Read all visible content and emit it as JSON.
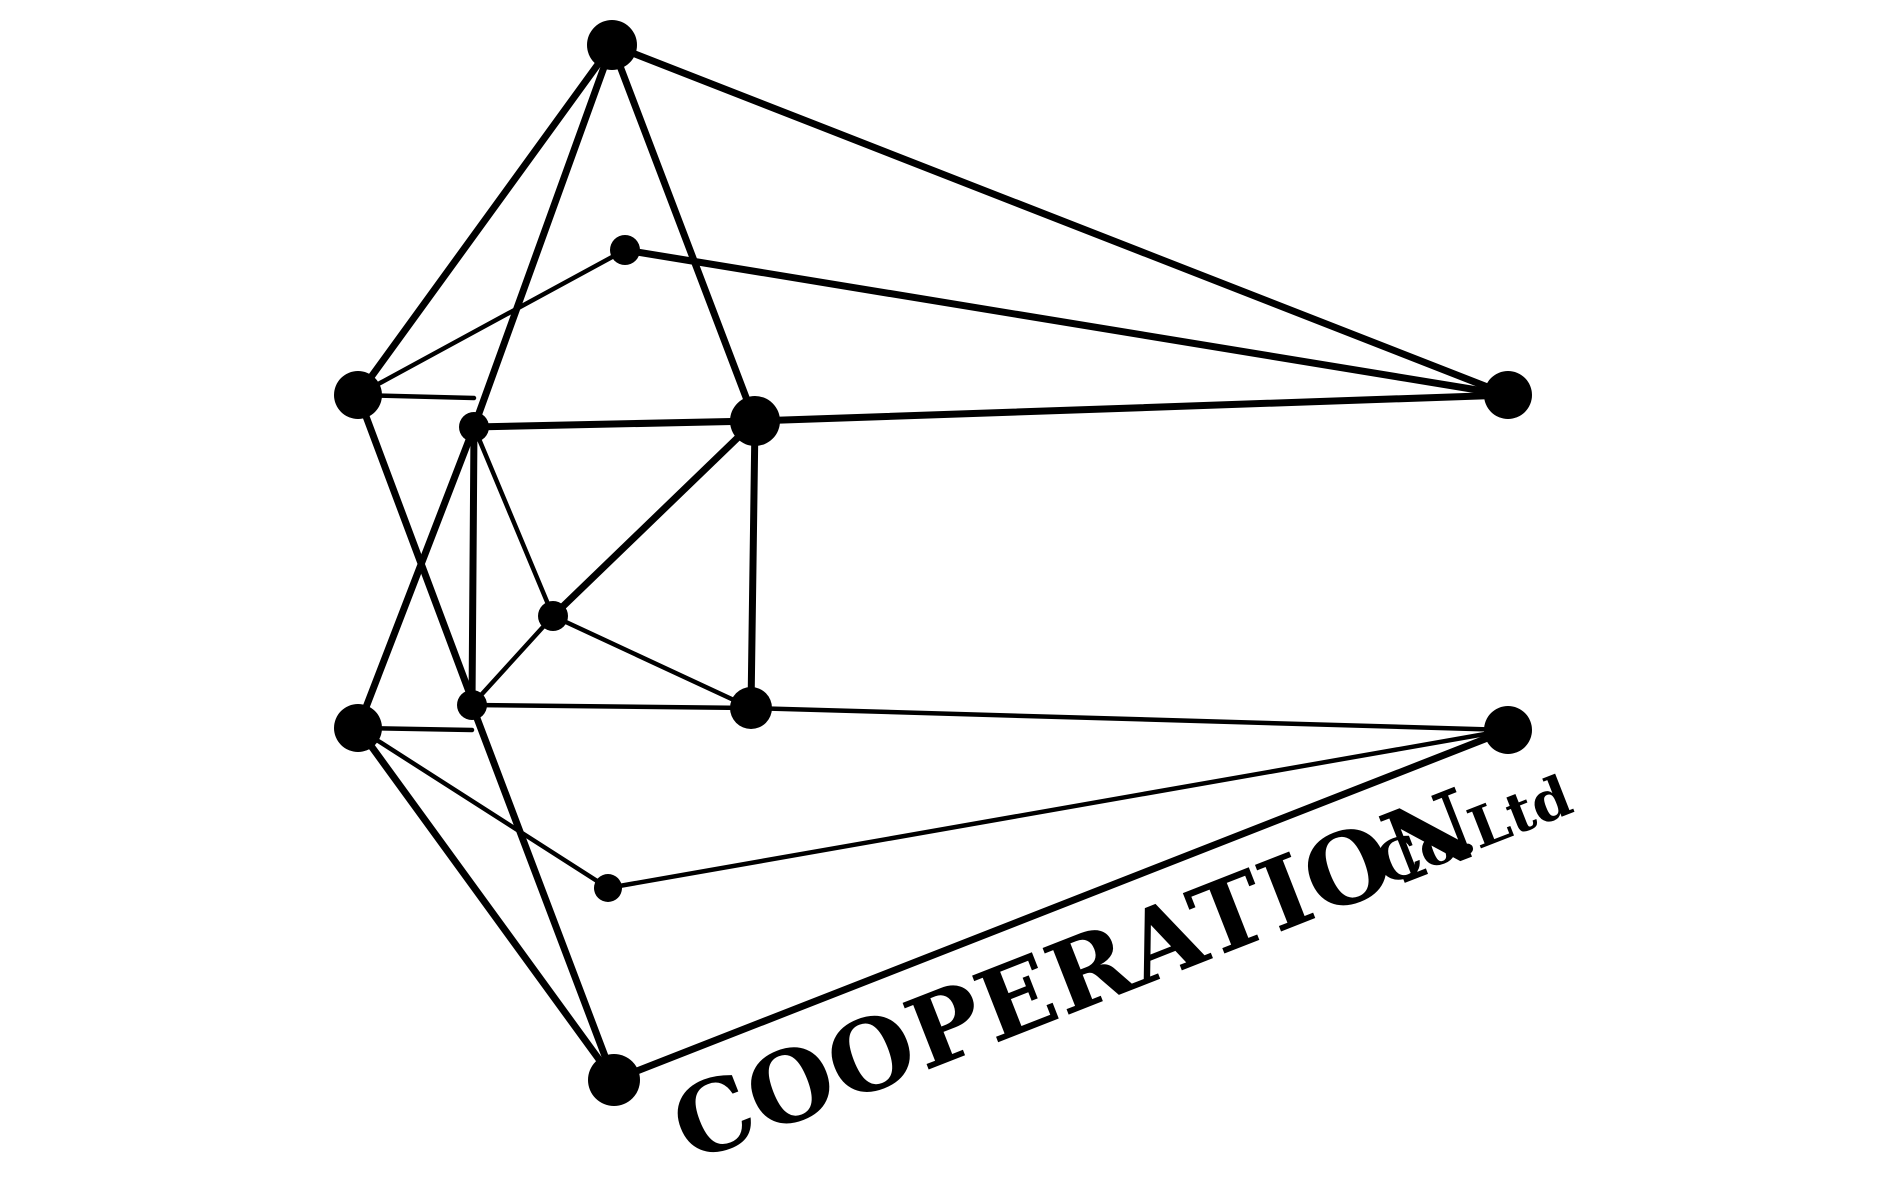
{
  "logo": {
    "wordmark": "COOPERATION",
    "suffix": "Co.Ltd",
    "color": "#000000",
    "background": "#ffffff",
    "graphic": "network-graph-letter-c-icon"
  }
}
